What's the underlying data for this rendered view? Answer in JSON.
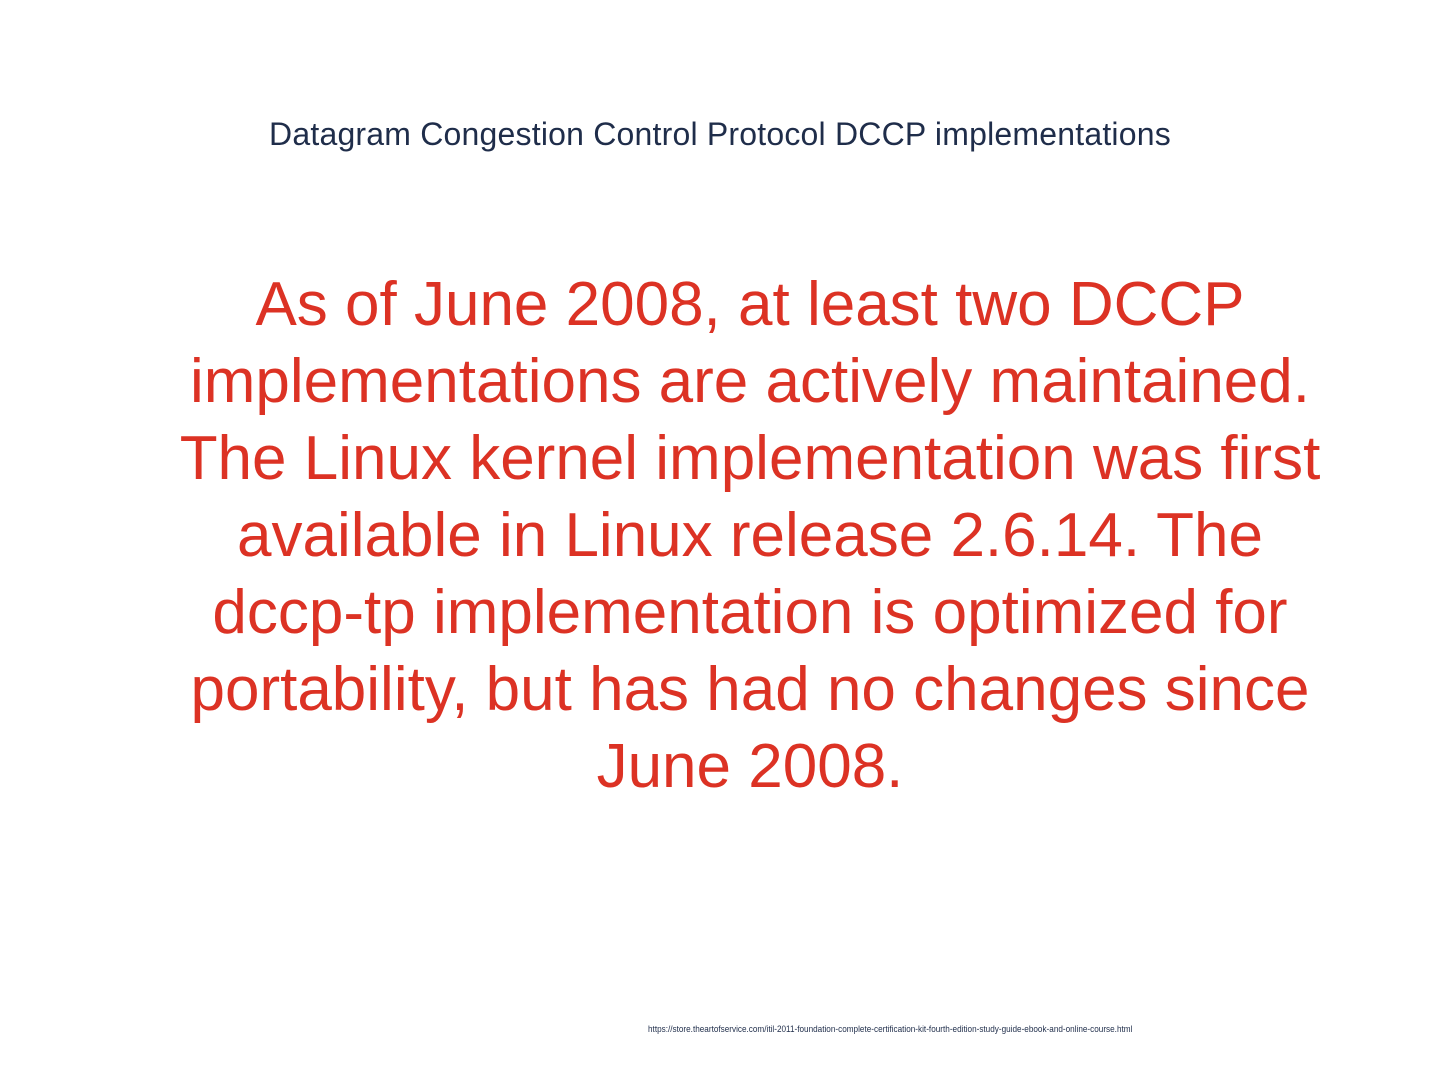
{
  "slide": {
    "title": "Datagram Congestion Control Protocol DCCP implementations",
    "body": "As of June 2008, at least two DCCP implementations are actively maintained. The Linux kernel implementation was first available in Linux release 2.6.14. The dccp-tp implementation is optimized for portability, but has had no changes since June 2008.",
    "source_url": "https://store.theartofservice.com/itil-2011-foundation-complete-certification-kit-fourth-edition-study-guide-ebook-and-online-course.html"
  },
  "colors": {
    "title": "#1f2d4a",
    "body": "#dc3224",
    "background": "#ffffff"
  }
}
